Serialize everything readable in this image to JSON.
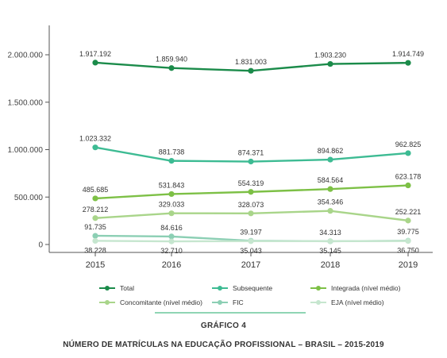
{
  "chart_data": {
    "type": "line",
    "x": [
      "2015",
      "2016",
      "2017",
      "2018",
      "2019"
    ],
    "ylim": [
      0,
      2000000
    ],
    "yticks": [
      "0",
      "500.000",
      "1.000.000",
      "1.500.000",
      "2.000.000"
    ],
    "grid": false,
    "legend_position": "bottom",
    "series": [
      {
        "name": "Total",
        "color": "#1b8b4a",
        "values": [
          1917192,
          1859940,
          1831003,
          1903230,
          1914749
        ],
        "labels": [
          "1.917.192",
          "1.859.940",
          "1.831.003",
          "1.903.230",
          "1.914.749"
        ],
        "label_pos": "above"
      },
      {
        "name": "Subsequente",
        "color": "#3dbb93",
        "values": [
          1023332,
          881738,
          874371,
          894862,
          962825
        ],
        "labels": [
          "1.023.332",
          "881.738",
          "874.371",
          "894.862",
          "962.825"
        ],
        "label_pos": "above"
      },
      {
        "name": "Integrada (nível médio)",
        "color": "#7dc046",
        "values": [
          485685,
          531843,
          554319,
          584564,
          623178
        ],
        "labels": [
          "485.685",
          "531.843",
          "554.319",
          "584.564",
          "623.178"
        ],
        "label_pos": "above"
      },
      {
        "name": "Concomitante (nível médio)",
        "color": "#a9d58a",
        "values": [
          278212,
          329033,
          328073,
          354346,
          252221
        ],
        "labels": [
          "278.212",
          "329.033",
          "328.073",
          "354.346",
          "252.221"
        ],
        "label_pos": "above"
      },
      {
        "name": "FIC",
        "color": "#8ccfb4",
        "values": [
          91735,
          84616,
          39197,
          34313,
          39775
        ],
        "labels": [
          "91.735",
          "84.616",
          "39.197",
          "34.313",
          "39.775"
        ],
        "label_pos": "above"
      },
      {
        "name": "EJA (nível médio)",
        "color": "#c6e6cf",
        "values": [
          38228,
          32710,
          35043,
          35145,
          36750
        ],
        "labels": [
          "38.228",
          "32.710",
          "35.043",
          "35.145",
          "36.750"
        ],
        "label_pos": "below"
      }
    ]
  },
  "caption": {
    "label": "GRÁFICO 4",
    "title": "NÚMERO DE MATRÍCULAS NA EDUCAÇÃO PROFISSIONAL – BRASIL – 2015-2019"
  }
}
